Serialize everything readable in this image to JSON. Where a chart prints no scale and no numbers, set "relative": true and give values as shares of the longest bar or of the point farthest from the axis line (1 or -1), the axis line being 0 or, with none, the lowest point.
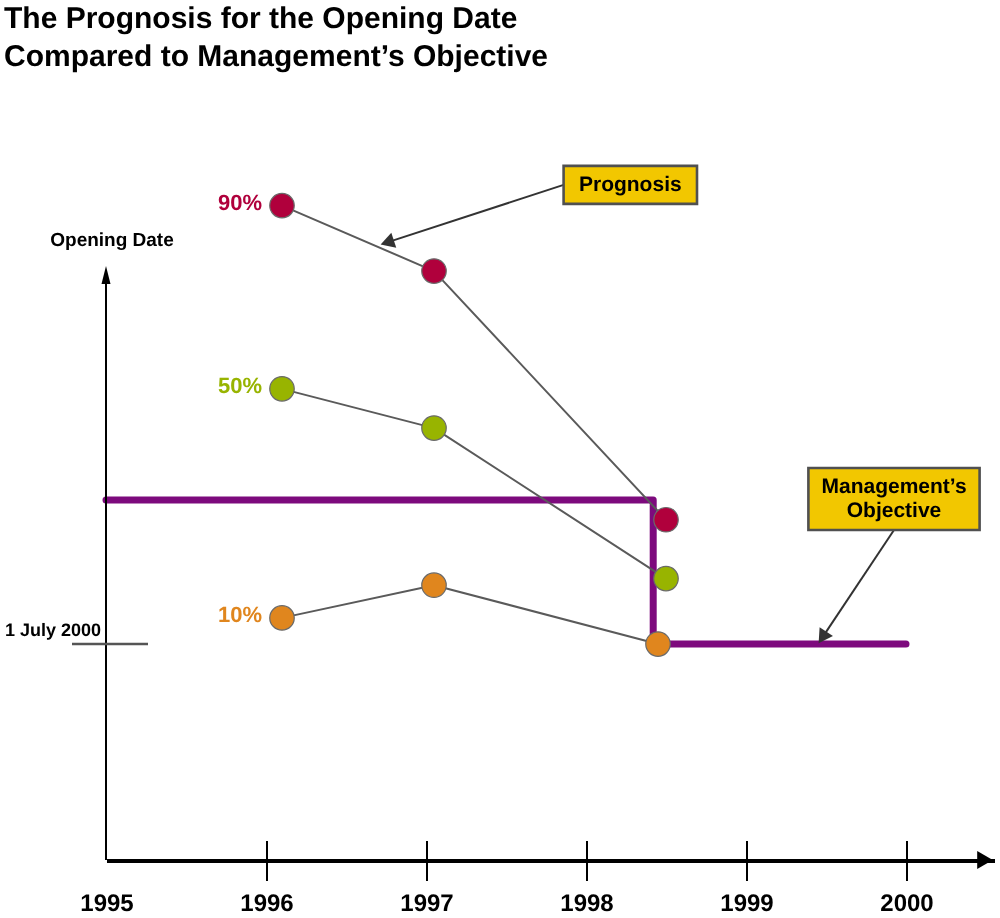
{
  "chart_data": {
    "type": "line",
    "title": "The Prognosis for the Opening Date Compared to Management’s Objective",
    "ylabel": "Opening Date",
    "relative": true,
    "xlim": [
      1995,
      2000.55
    ],
    "xticks": [
      1995,
      1996,
      1997,
      1998,
      1999,
      2000
    ],
    "marker": "circle",
    "series": [
      {
        "name": "90%",
        "color": "#b0003c",
        "x": [
          1996.1,
          1997.05,
          1998.5
        ],
        "values": [
          1.0,
          0.9,
          0.52
        ]
      },
      {
        "name": "50%",
        "color": "#98b400",
        "x": [
          1996.1,
          1997.05,
          1998.5
        ],
        "values": [
          0.72,
          0.66,
          0.43
        ]
      },
      {
        "name": "10%",
        "color": "#e0861e",
        "x": [
          1996.1,
          1997.05,
          1998.45
        ],
        "values": [
          0.37,
          0.42,
          0.33
        ]
      },
      {
        "type": "step",
        "marker": "none",
        "color": "#7d0a7d",
        "x": [
          1995,
          1998.42,
          2000
        ],
        "values": [
          0.55,
          0.33,
          0.33
        ]
      }
    ],
    "ref_lines": [
      {
        "axis": "y",
        "value": 0.33,
        "label": "1 July 2000",
        "color": "#555555"
      }
    ],
    "annotations": [
      {
        "text": "Prognosis",
        "x": 1996.71,
        "y": 0.94
      },
      {
        "text": "Management’s Objective",
        "x": 1999.45,
        "y": 0.33
      }
    ]
  }
}
